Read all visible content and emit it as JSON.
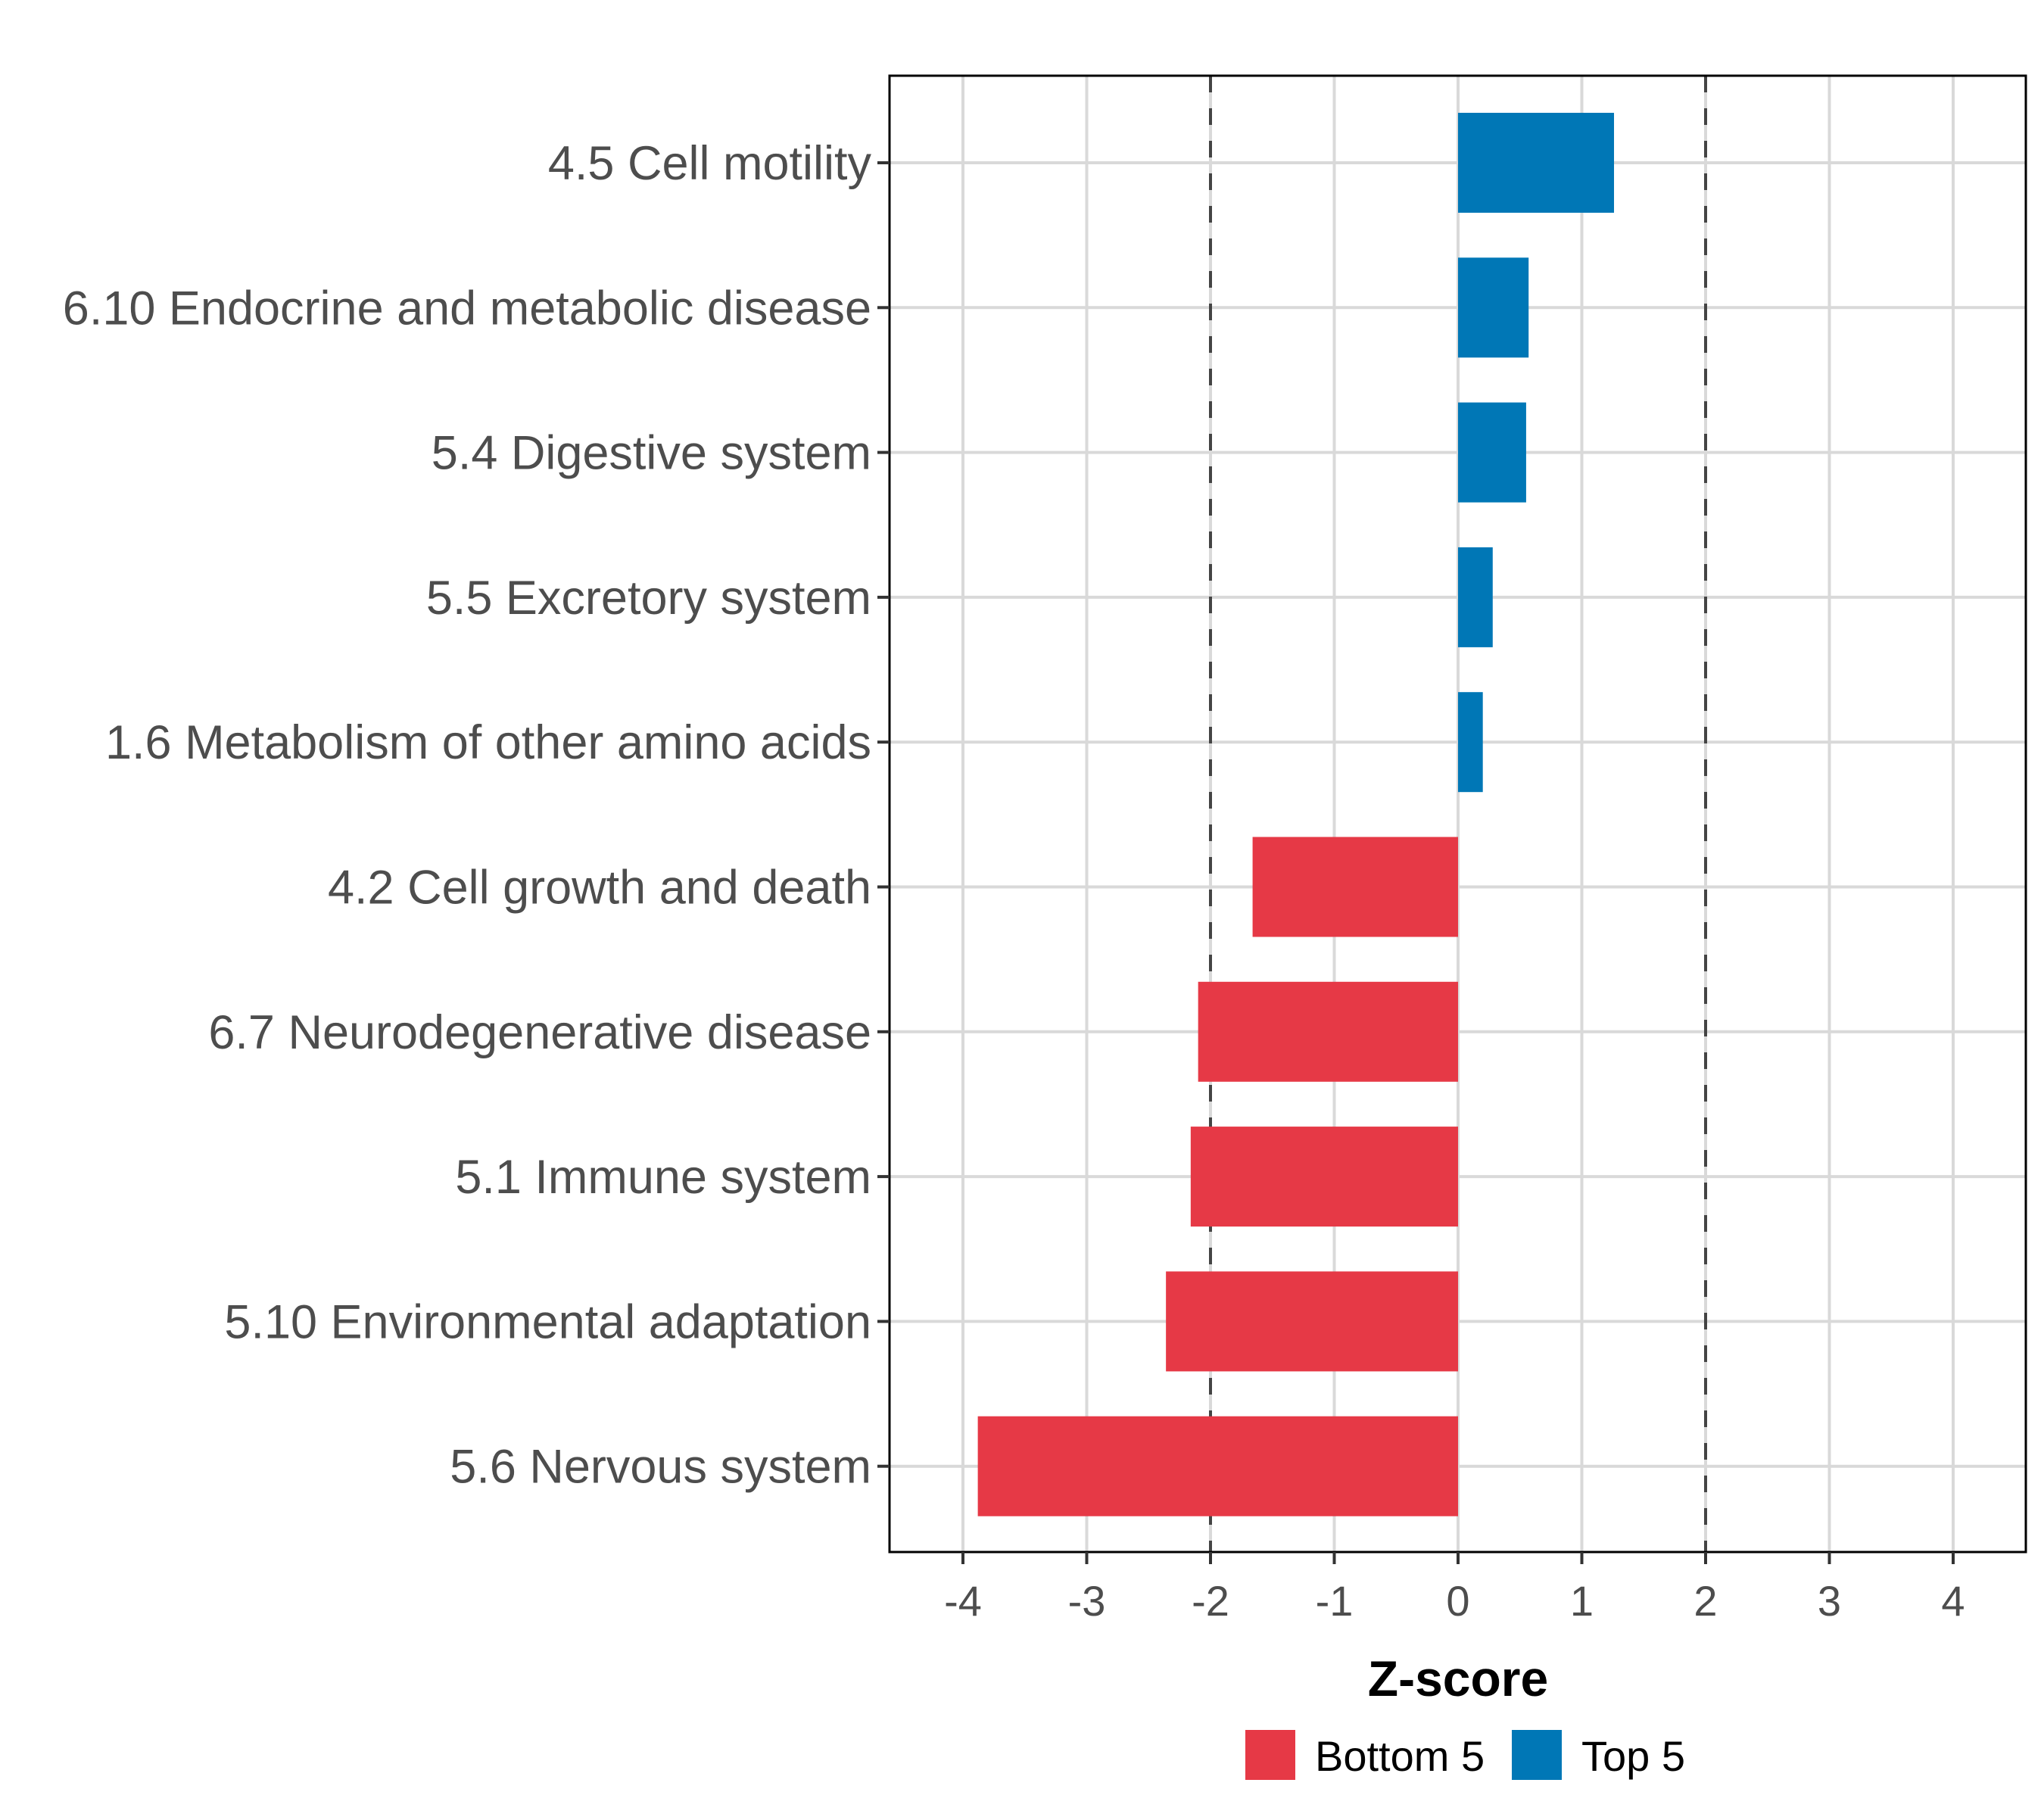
{
  "chart_data": {
    "type": "bar",
    "orientation": "horizontal",
    "title": "",
    "xlabel": "Z-score",
    "ylabel": "",
    "xlim": [
      -4.6,
      4.6
    ],
    "x_ticks": [
      "-4",
      "-3",
      "-2",
      "-1",
      "0",
      "1",
      "2",
      "3",
      "4"
    ],
    "x_tick_values": [
      -4,
      -3,
      -2,
      -1,
      0,
      1,
      2,
      3,
      4
    ],
    "reference_lines": [
      -2,
      2
    ],
    "grid": true,
    "legend_position": "bottom",
    "categories": [
      "4.5 Cell motility",
      "6.10 Endocrine and metabolic disease",
      "5.4 Digestive system",
      "5.5 Excretory system",
      "1.6 Metabolism of other amino acids",
      "4.2 Cell growth and death",
      "6.7 Neurodegenerative disease",
      "5.1 Immune system",
      "5.10 Environmental adaptation",
      "5.6 Nervous system"
    ],
    "values": [
      1.26,
      0.57,
      0.55,
      0.28,
      0.2,
      -1.66,
      -2.1,
      -2.16,
      -2.36,
      -3.88
    ],
    "groups": [
      "Top 5",
      "Top 5",
      "Top 5",
      "Top 5",
      "Top 5",
      "Bottom 5",
      "Bottom 5",
      "Bottom 5",
      "Bottom 5",
      "Bottom 5"
    ],
    "legend": [
      {
        "name": "Bottom 5",
        "color": "#e63946"
      },
      {
        "name": "Top 5",
        "color": "#0077b6"
      }
    ]
  },
  "colors": {
    "Bottom 5": "#e63946",
    "Top 5": "#0077b6",
    "grid": "#d9d9d9",
    "refline": "#444444",
    "axis": "#000000"
  }
}
